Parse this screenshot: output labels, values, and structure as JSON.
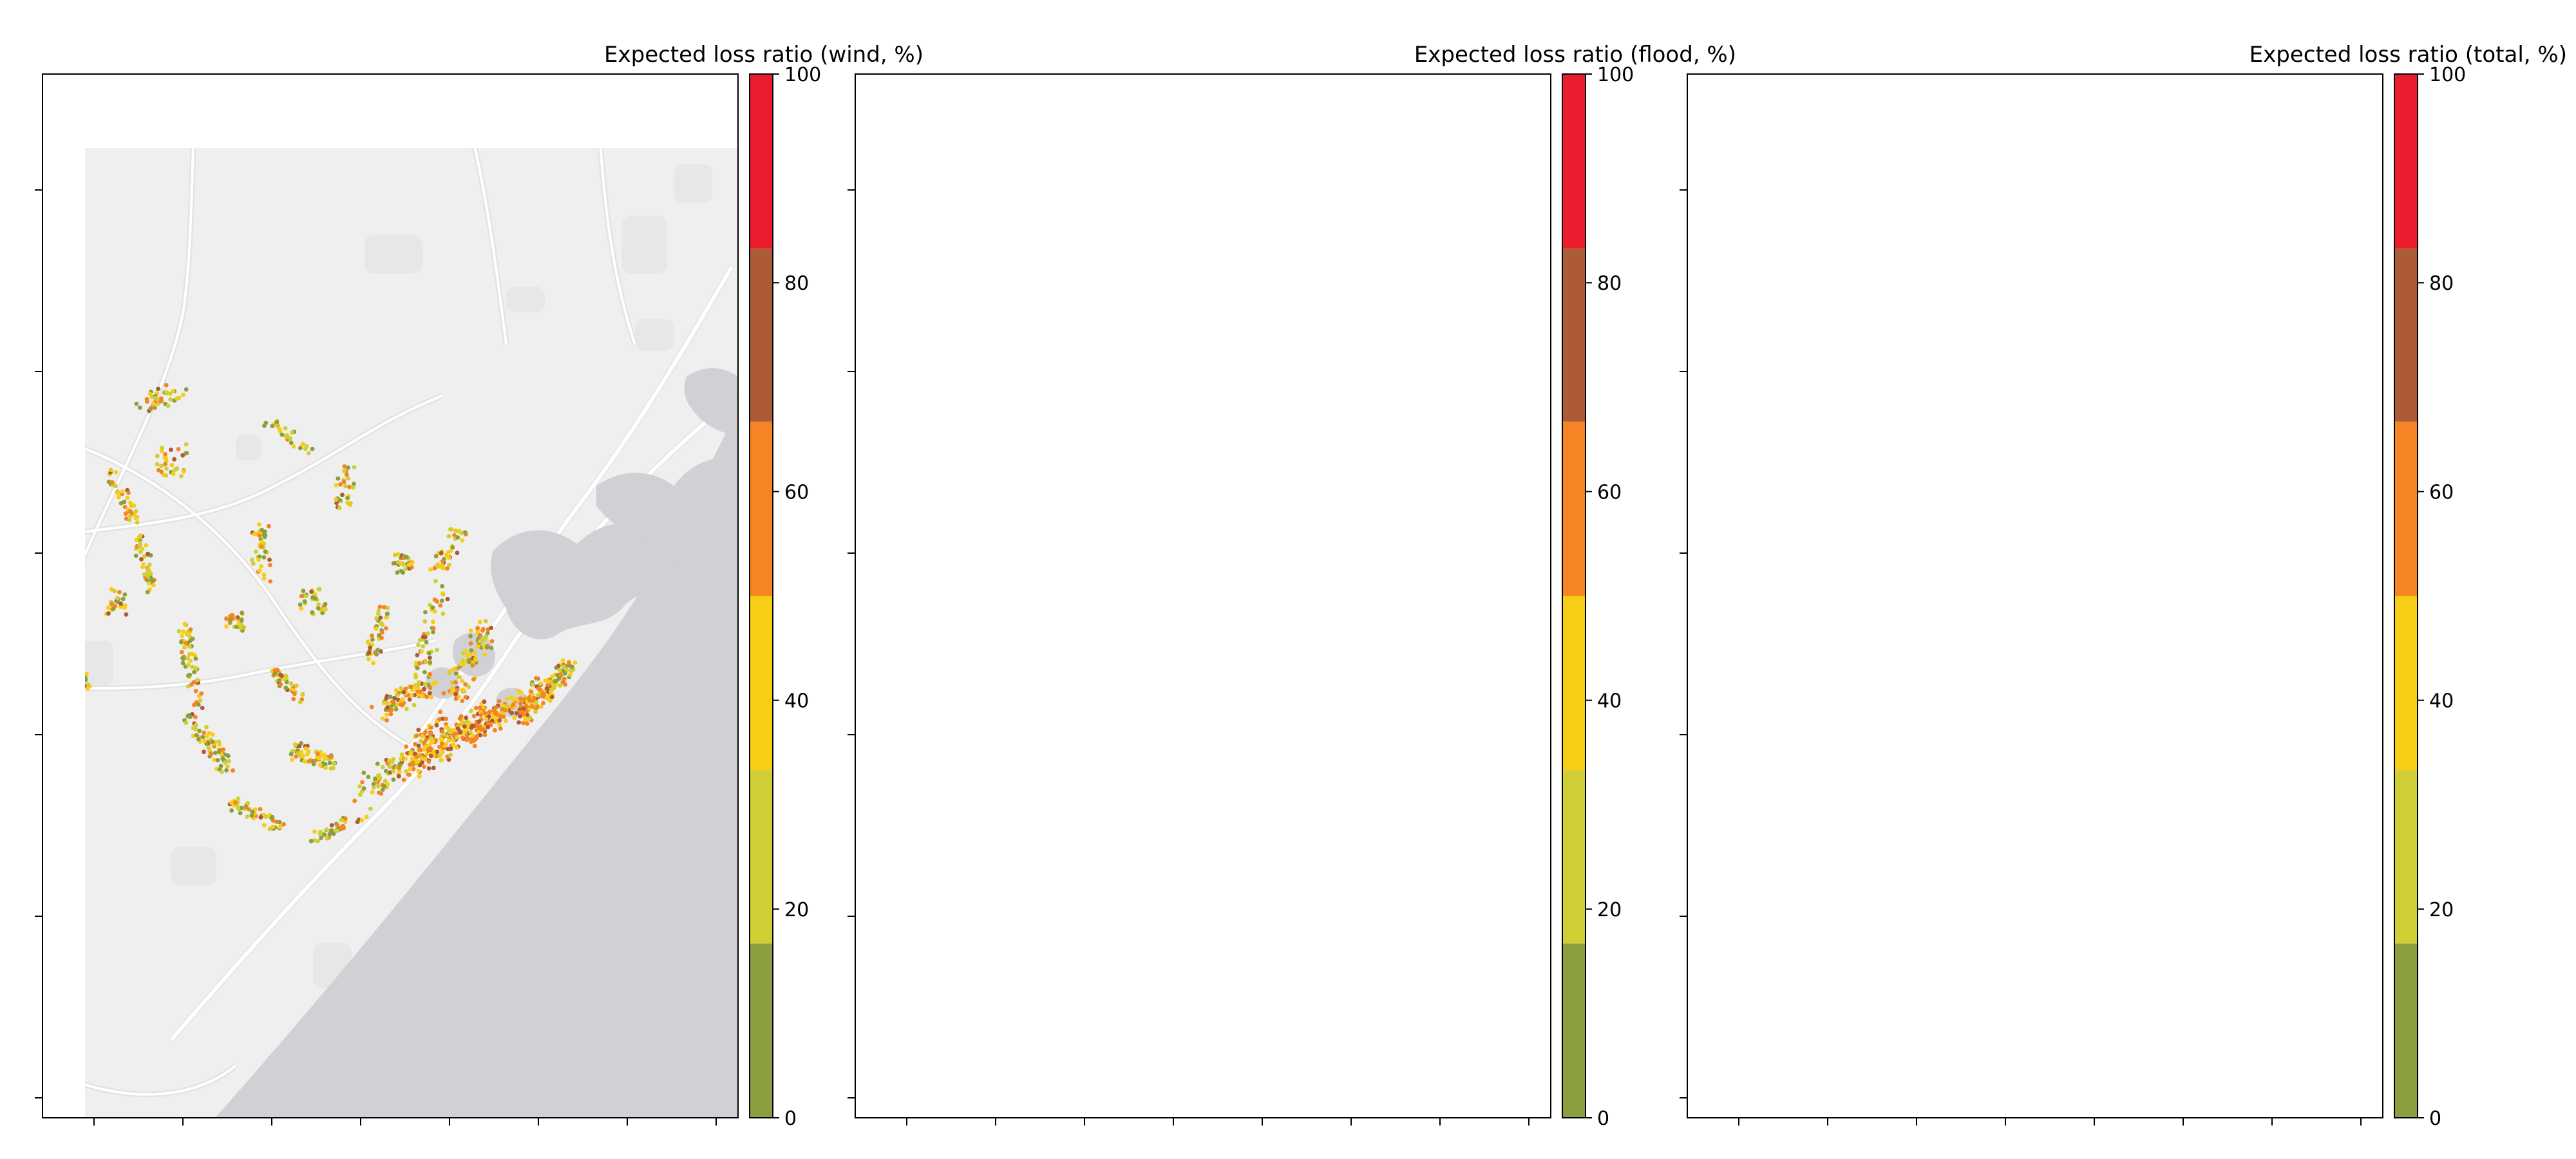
{
  "figure": {
    "panels": [
      {
        "id": "wind",
        "title": "Expected loss ratio (wind, %)",
        "hazard": "wind"
      },
      {
        "id": "flood",
        "title": "Expected loss ratio (flood, %)",
        "hazard": "flood"
      },
      {
        "id": "total",
        "title": "Expected loss ratio (total, %)",
        "hazard": "total"
      }
    ],
    "colorbar": {
      "ticks": [
        "0",
        "20",
        "40",
        "60",
        "80",
        "100"
      ],
      "bins": [
        {
          "range": [
            0,
            16.7
          ],
          "color": "#8a9f3e"
        },
        {
          "range": [
            16.7,
            33.3
          ],
          "color": "#cfcf35"
        },
        {
          "range": [
            33.3,
            50
          ],
          "color": "#f7cd16"
        },
        {
          "range": [
            50,
            66.7
          ],
          "color": "#f58425"
        },
        {
          "range": [
            66.7,
            83.3
          ],
          "color": "#ad5a36"
        },
        {
          "range": [
            83.3,
            100
          ],
          "color": "#ea1c2e"
        }
      ]
    },
    "basemap": {
      "land": "#efefef",
      "water": "#d0d0d5",
      "roads": "#ffffff"
    }
  }
}
